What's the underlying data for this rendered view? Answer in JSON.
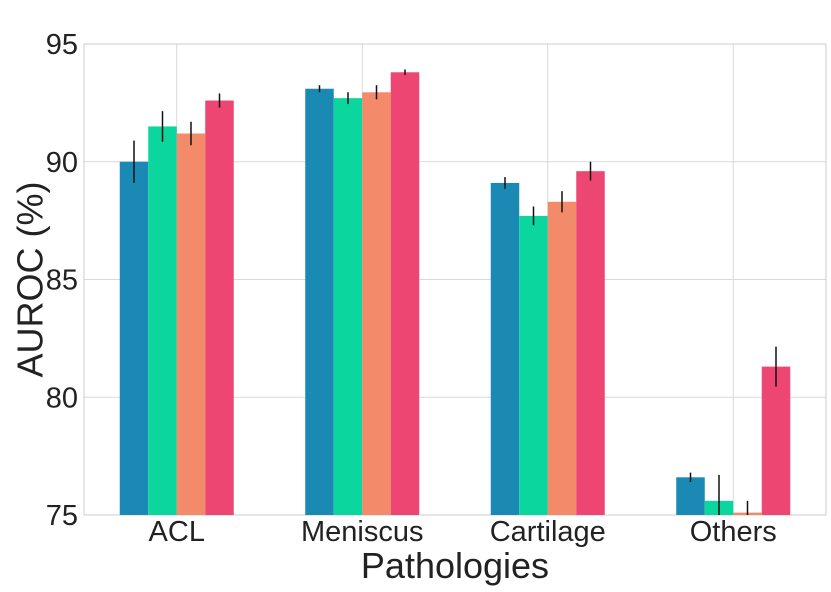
{
  "chart_data": {
    "type": "bar",
    "title": "",
    "xlabel": "Pathologies",
    "ylabel": "AUROC (%)",
    "ylim": [
      75,
      95
    ],
    "yticks": [
      75,
      80,
      85,
      90,
      95
    ],
    "grid": true,
    "legend": "none",
    "categories": [
      "ACL",
      "Meniscus",
      "Cartilage",
      "Others"
    ],
    "series": [
      {
        "name": "series-1",
        "color": "#1a89b4",
        "values": [
          90.0,
          93.1,
          89.1,
          76.6
        ],
        "errors": [
          0.9,
          0.15,
          0.25,
          0.2
        ]
      },
      {
        "name": "series-2",
        "color": "#0bd69d",
        "values": [
          91.5,
          92.7,
          87.7,
          75.6
        ],
        "errors": [
          0.65,
          0.25,
          0.4,
          1.1
        ]
      },
      {
        "name": "series-3",
        "color": "#f38b6b",
        "values": [
          91.2,
          92.95,
          88.3,
          75.1
        ],
        "errors": [
          0.5,
          0.3,
          0.45,
          0.5
        ]
      },
      {
        "name": "series-4",
        "color": "#ee4672",
        "values": [
          92.6,
          93.8,
          89.6,
          81.3
        ],
        "errors": [
          0.3,
          0.12,
          0.4,
          0.85
        ]
      }
    ]
  }
}
